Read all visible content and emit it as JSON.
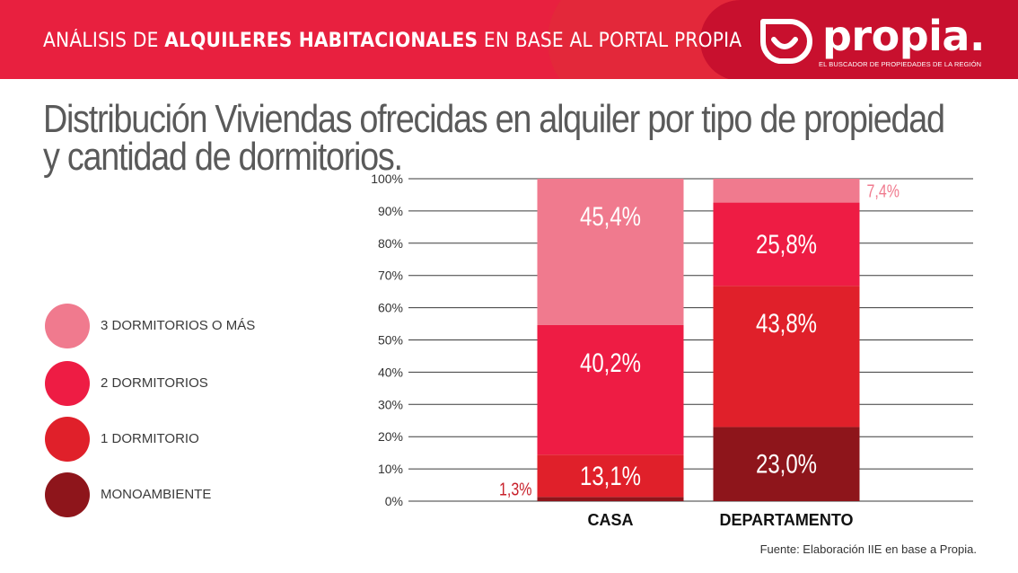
{
  "header": {
    "title_pre": "ANÁLISIS DE ",
    "title_bold": "ALQUILERES HABITACIONALES",
    "title_post": " EN BASE AL PORTAL PROPIA",
    "logo_word": "propia.",
    "logo_tagline": "EL BUSCADOR DE PROPIEDADES DE LA REGIÓN"
  },
  "title_line1": "Distribución Viviendas ofrecidas en alquiler por tipo de propiedad",
  "title_line2": "y cantidad de dormitorios.",
  "legend": [
    {
      "label": "3 DORMITORIOS O MÁS",
      "color": "#f07a8e"
    },
    {
      "label": "2 DORMITORIOS",
      "color": "#ee1c44"
    },
    {
      "label": "1 DORMITORIO",
      "color": "#e0202a"
    },
    {
      "label": "MONOAMBIENTE",
      "color": "#8e151b"
    }
  ],
  "source": "Fuente: Elaboración IIE en base a Propia.",
  "chart_data": {
    "type": "bar",
    "stacked": true,
    "categories": [
      "CASA",
      "DEPARTAMENTO"
    ],
    "series": [
      {
        "name": "MONOAMBIENTE",
        "values": [
          1.3,
          23.0
        ],
        "labels": [
          "1,3%",
          "23,0%"
        ],
        "color": "#8e151b"
      },
      {
        "name": "1 DORMITORIO",
        "values": [
          13.1,
          43.8
        ],
        "labels": [
          "13,1%",
          "43,8%"
        ],
        "color": "#e0202a"
      },
      {
        "name": "2 DORMITORIOS",
        "values": [
          40.2,
          25.8
        ],
        "labels": [
          "40,2%",
          "25,8%"
        ],
        "color": "#ee1c44"
      },
      {
        "name": "3 DORMITORIOS O MÁS",
        "values": [
          45.4,
          7.4
        ],
        "labels": [
          "45,4%",
          "7,4%"
        ],
        "color": "#f07a8e"
      }
    ],
    "yticks": [
      "0%",
      "10%",
      "20%",
      "30%",
      "40%",
      "50%",
      "60%",
      "70%",
      "80%",
      "90%",
      "100%"
    ],
    "ylim": [
      0,
      100
    ],
    "grid": true,
    "legend_position": "left"
  }
}
